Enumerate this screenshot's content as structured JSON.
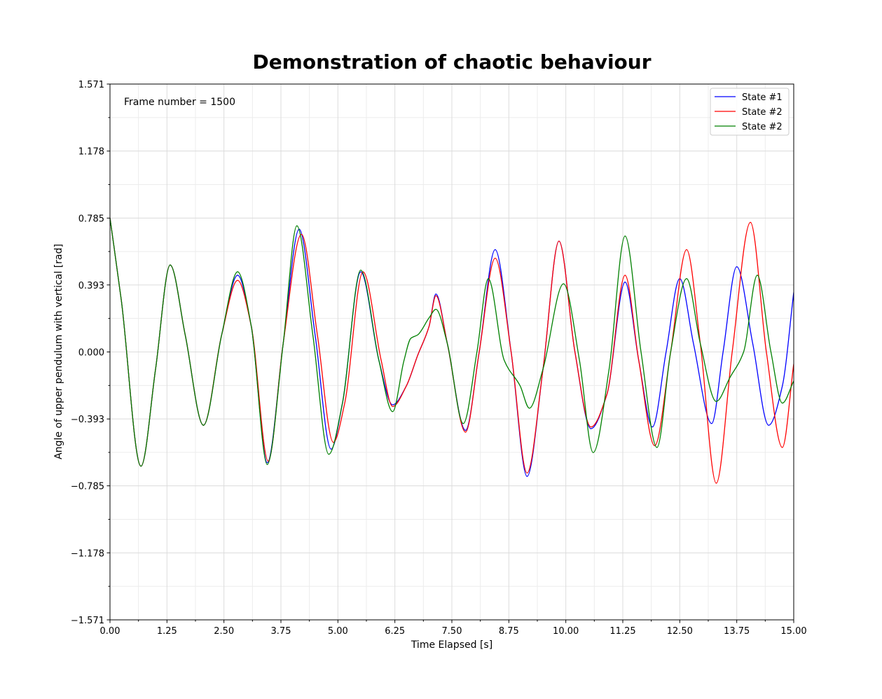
{
  "chart_data": {
    "type": "line",
    "title": "Demonstration of chaotic behaviour",
    "xlabel": "Time Elapsed [s]",
    "ylabel": "Angle of upper pendulum with vertical [rad]",
    "annotation": "Frame number = 1500",
    "xlim": [
      0,
      15
    ],
    "ylim": [
      -1.571,
      1.571
    ],
    "x_ticks": [
      0,
      1.25,
      2.5,
      3.75,
      5,
      6.25,
      7.5,
      8.75,
      10,
      11.25,
      12.5,
      13.75,
      15
    ],
    "x_tick_labels": [
      "0.00",
      "1.25",
      "2.50",
      "3.75",
      "5.00",
      "6.25",
      "7.50",
      "8.75",
      "10.00",
      "11.25",
      "12.50",
      "13.75",
      "15.00"
    ],
    "y_ticks": [
      -1.571,
      -1.178,
      -0.785,
      -0.393,
      0,
      0.393,
      0.785,
      1.178,
      1.571
    ],
    "y_tick_labels": [
      "−1.571",
      "−1.178",
      "−0.785",
      "−0.393",
      "0.000",
      "0.393",
      "0.785",
      "1.178",
      "1.571"
    ],
    "grid": true,
    "legend_position": "top-right",
    "series": [
      {
        "name": "State #1",
        "color": "#0000ff",
        "x": [
          0,
          0.25,
          0.68,
          1.0,
          1.32,
          1.65,
          2.05,
          2.45,
          2.8,
          3.1,
          3.45,
          3.8,
          4.15,
          4.5,
          4.85,
          5.1,
          5.5,
          5.9,
          6.2,
          6.5,
          6.75,
          7.0,
          7.15,
          7.4,
          7.8,
          8.1,
          8.45,
          8.8,
          9.15,
          9.5,
          9.85,
          10.2,
          10.55,
          10.9,
          11.3,
          11.6,
          11.9,
          12.2,
          12.5,
          12.8,
          13.2,
          13.45,
          13.75,
          14.1,
          14.45,
          14.75,
          15.0
        ],
        "y": [
          0.785,
          0.3,
          -0.67,
          -0.1,
          0.51,
          0.1,
          -0.43,
          0.1,
          0.45,
          0.15,
          -0.65,
          0.05,
          0.72,
          0.1,
          -0.57,
          -0.3,
          0.47,
          -0.05,
          -0.31,
          -0.2,
          -0.02,
          0.15,
          0.34,
          0.05,
          -0.46,
          0.0,
          0.6,
          0.0,
          -0.73,
          -0.1,
          0.65,
          0.0,
          -0.45,
          -0.25,
          0.41,
          -0.05,
          -0.44,
          0.0,
          0.43,
          0.05,
          -0.42,
          0.0,
          0.5,
          0.05,
          -0.43,
          -0.2,
          0.35
        ]
      },
      {
        "name": "State #2",
        "color": "#ff0000",
        "x": [
          0,
          0.25,
          0.68,
          1.0,
          1.32,
          1.65,
          2.05,
          2.45,
          2.8,
          3.1,
          3.47,
          3.8,
          4.2,
          4.55,
          4.9,
          5.15,
          5.55,
          5.95,
          6.2,
          6.5,
          6.75,
          7.0,
          7.15,
          7.4,
          7.8,
          8.1,
          8.45,
          8.8,
          9.15,
          9.5,
          9.85,
          10.2,
          10.55,
          10.9,
          11.3,
          11.6,
          11.95,
          12.3,
          12.65,
          12.95,
          13.3,
          13.65,
          14.05,
          14.4,
          14.75,
          15.0
        ],
        "y": [
          0.785,
          0.3,
          -0.67,
          -0.1,
          0.51,
          0.1,
          -0.43,
          0.1,
          0.42,
          0.15,
          -0.64,
          0.05,
          0.69,
          0.1,
          -0.53,
          -0.3,
          0.47,
          -0.05,
          -0.32,
          -0.2,
          -0.02,
          0.15,
          0.33,
          0.05,
          -0.47,
          0.0,
          0.55,
          0.0,
          -0.71,
          -0.1,
          0.65,
          0.0,
          -0.44,
          -0.25,
          0.45,
          -0.05,
          -0.55,
          0.0,
          0.6,
          0.05,
          -0.77,
          0.0,
          0.76,
          0.0,
          -0.56,
          -0.07
        ]
      },
      {
        "name": "State #2",
        "color": "#008000",
        "x": [
          0,
          0.25,
          0.68,
          1.0,
          1.32,
          1.65,
          2.05,
          2.45,
          2.8,
          3.1,
          3.45,
          3.8,
          4.1,
          4.45,
          4.8,
          5.1,
          5.5,
          5.9,
          6.2,
          6.45,
          6.6,
          6.75,
          7.0,
          7.15,
          7.4,
          7.75,
          8.05,
          8.3,
          8.65,
          9.0,
          9.2,
          9.5,
          9.95,
          10.3,
          10.6,
          10.95,
          11.3,
          11.65,
          12.0,
          12.3,
          12.65,
          12.95,
          13.3,
          13.6,
          13.9,
          14.2,
          14.5,
          14.75,
          15.0
        ],
        "y": [
          0.785,
          0.3,
          -0.67,
          -0.1,
          0.51,
          0.1,
          -0.43,
          0.1,
          0.47,
          0.15,
          -0.66,
          0.05,
          0.74,
          0.1,
          -0.6,
          -0.3,
          0.48,
          -0.05,
          -0.35,
          -0.05,
          0.08,
          0.1,
          0.2,
          0.25,
          0.05,
          -0.42,
          0.0,
          0.43,
          -0.05,
          -0.2,
          -0.33,
          -0.1,
          0.4,
          -0.05,
          -0.59,
          -0.1,
          0.68,
          0.0,
          -0.56,
          0.0,
          0.43,
          0.05,
          -0.29,
          -0.15,
          0.0,
          0.45,
          0.0,
          -0.3,
          -0.17
        ]
      }
    ]
  }
}
